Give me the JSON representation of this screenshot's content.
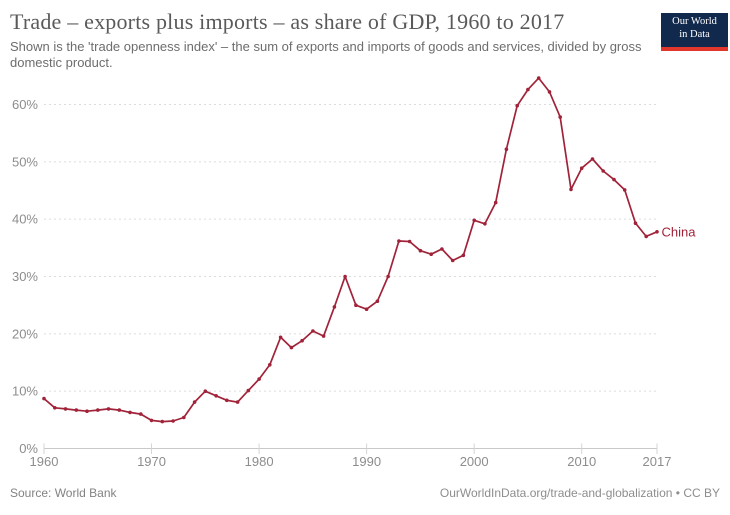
{
  "header": {
    "title": "Trade – exports plus imports – as share of GDP, 1960 to 2017",
    "subtitle": "Shown is the 'trade openness index' – the sum of exports and imports of goods and services, divided by gross domestic product.",
    "logo": {
      "line1": "Our World",
      "line2": "in Data"
    }
  },
  "footer": {
    "source": "Source: World Bank",
    "attribution": "OurWorldInData.org/trade-and-globalization • CC BY"
  },
  "colors": {
    "series_red": "#a12339",
    "logo_navy": "#12294e",
    "logo_red": "#e0362b",
    "grid_gray": "#dcdcdc",
    "axis_gray": "#c9c9c9",
    "tick_label_gray": "#8d8d8d"
  },
  "chart_data": {
    "type": "line",
    "title": "Trade – exports plus imports – as share of GDP, 1960 to 2017",
    "xlabel": "",
    "ylabel": "",
    "xlim": [
      1960,
      2017
    ],
    "ylim": [
      0,
      66
    ],
    "grid": "horizontal-dashed",
    "legend_position": "end-of-line-label",
    "x_ticks": [
      1960,
      1970,
      1980,
      1990,
      2000,
      2010,
      2017
    ],
    "y_ticks": [
      0,
      10,
      20,
      30,
      40,
      50,
      60
    ],
    "y_tick_suffix": "%",
    "series": [
      {
        "name": "China",
        "color": "#a12339",
        "x": [
          1960,
          1961,
          1962,
          1963,
          1964,
          1965,
          1966,
          1967,
          1968,
          1969,
          1970,
          1971,
          1972,
          1973,
          1974,
          1975,
          1976,
          1977,
          1978,
          1979,
          1980,
          1981,
          1982,
          1983,
          1984,
          1985,
          1986,
          1987,
          1988,
          1989,
          1990,
          1991,
          1992,
          1993,
          1994,
          1995,
          1996,
          1997,
          1998,
          1999,
          2000,
          2001,
          2002,
          2003,
          2004,
          2005,
          2006,
          2007,
          2008,
          2009,
          2010,
          2011,
          2012,
          2013,
          2014,
          2015,
          2016,
          2017
        ],
        "y": [
          8.7,
          7.1,
          6.9,
          6.7,
          6.5,
          6.7,
          6.9,
          6.7,
          6.3,
          6.0,
          4.9,
          4.7,
          4.8,
          5.4,
          8.1,
          10.0,
          9.2,
          8.4,
          8.1,
          10.1,
          12.1,
          14.6,
          19.4,
          17.6,
          18.8,
          20.5,
          19.6,
          24.7,
          30.0,
          25.0,
          24.3,
          25.7,
          30.0,
          36.2,
          36.1,
          34.5,
          33.9,
          34.8,
          32.8,
          33.7,
          39.8,
          39.2,
          42.9,
          52.2,
          59.8,
          62.6,
          64.6,
          62.2,
          57.8,
          45.2,
          48.9,
          50.5,
          48.4,
          46.9,
          45.1,
          39.3,
          37.0,
          37.8
        ]
      }
    ]
  }
}
